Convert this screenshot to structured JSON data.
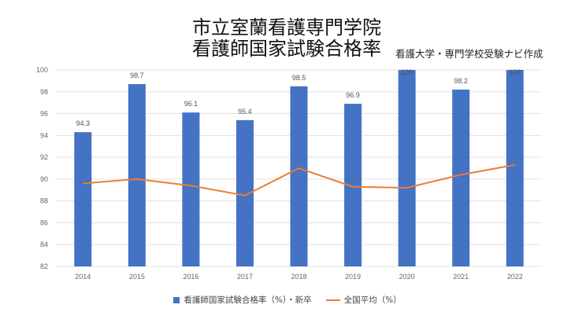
{
  "chart_data": {
    "type": "bar",
    "title_line1": "市立室蘭看護専門学院",
    "title_line2": "看護師国家試験合格率",
    "subtitle": "看護大学・専門学校受験ナビ作成",
    "categories": [
      "2014",
      "2015",
      "2016",
      "2017",
      "2018",
      "2019",
      "2020",
      "2021",
      "2022"
    ],
    "series": [
      {
        "name": "看護師国家試験合格率（%）・新卒",
        "type": "bar",
        "color": "#4472c4",
        "values": [
          94.3,
          98.7,
          96.1,
          95.4,
          98.5,
          96.9,
          100,
          98.2,
          100
        ],
        "labels": [
          "94.3",
          "98.7",
          "96.1",
          "95.4",
          "98.5",
          "96.9",
          "100",
          "98.2",
          "100"
        ]
      },
      {
        "name": "全国平均（%）",
        "type": "line",
        "color": "#ed7d31",
        "values": [
          89.6,
          90.0,
          89.4,
          88.5,
          91.0,
          89.3,
          89.2,
          90.4,
          91.3
        ]
      }
    ],
    "ylim": [
      82,
      100
    ],
    "yticks": [
      "82",
      "84",
      "86",
      "88",
      "90",
      "92",
      "94",
      "96",
      "98",
      "100"
    ],
    "grid": true,
    "legend": "bottom"
  }
}
